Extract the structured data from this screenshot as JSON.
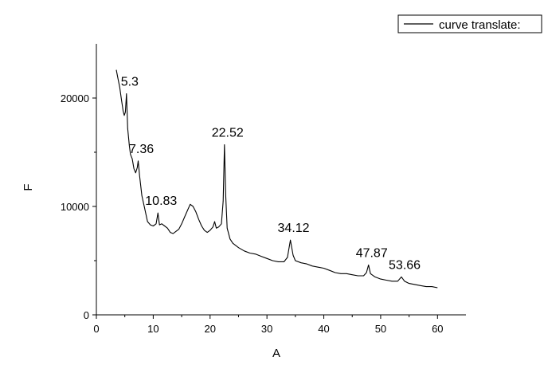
{
  "chart_data": {
    "type": "line",
    "title": "",
    "xlabel": "A",
    "ylabel": "F",
    "xlim": [
      0,
      65
    ],
    "ylim": [
      0,
      25000
    ],
    "xticks": [
      0,
      10,
      20,
      30,
      40,
      50,
      60
    ],
    "xtick_labels": [
      "0",
      "10",
      "20",
      "30",
      "40",
      "50",
      "60"
    ],
    "yticks": [
      0,
      10000,
      20000
    ],
    "ytick_labels": [
      "0",
      "10000",
      "20000"
    ],
    "grid": false,
    "legend": {
      "position": "top-right",
      "entries": [
        "curve translate:"
      ]
    },
    "series": [
      {
        "name": "curve translate:",
        "color": "#000000",
        "points": [
          [
            3.5,
            22600
          ],
          [
            3.8,
            21800
          ],
          [
            4.1,
            21000
          ],
          [
            4.4,
            19900
          ],
          [
            4.7,
            18800
          ],
          [
            4.9,
            18400
          ],
          [
            5.1,
            18700
          ],
          [
            5.3,
            20400
          ],
          [
            5.5,
            17200
          ],
          [
            5.8,
            15600
          ],
          [
            6.0,
            14800
          ],
          [
            6.3,
            14400
          ],
          [
            6.6,
            13500
          ],
          [
            6.9,
            13100
          ],
          [
            7.2,
            13600
          ],
          [
            7.36,
            14200
          ],
          [
            7.6,
            12800
          ],
          [
            8.0,
            11000
          ],
          [
            8.5,
            9800
          ],
          [
            9.0,
            8600
          ],
          [
            9.5,
            8300
          ],
          [
            10.0,
            8200
          ],
          [
            10.5,
            8400
          ],
          [
            10.83,
            9400
          ],
          [
            11.1,
            8300
          ],
          [
            11.5,
            8400
          ],
          [
            12.0,
            8200
          ],
          [
            12.5,
            8000
          ],
          [
            13.0,
            7600
          ],
          [
            13.5,
            7500
          ],
          [
            14.0,
            7700
          ],
          [
            14.5,
            7900
          ],
          [
            15.0,
            8400
          ],
          [
            15.5,
            9000
          ],
          [
            16.0,
            9600
          ],
          [
            16.5,
            10200
          ],
          [
            17.0,
            10000
          ],
          [
            17.5,
            9500
          ],
          [
            18.0,
            8800
          ],
          [
            18.5,
            8200
          ],
          [
            19.0,
            7800
          ],
          [
            19.5,
            7600
          ],
          [
            20.0,
            7800
          ],
          [
            20.5,
            8100
          ],
          [
            20.8,
            8600
          ],
          [
            21.1,
            8000
          ],
          [
            21.5,
            8100
          ],
          [
            22.0,
            8400
          ],
          [
            22.3,
            10500
          ],
          [
            22.52,
            15700
          ],
          [
            22.75,
            11000
          ],
          [
            23.0,
            8000
          ],
          [
            23.5,
            7000
          ],
          [
            24.0,
            6600
          ],
          [
            25.0,
            6200
          ],
          [
            26.0,
            5900
          ],
          [
            27.0,
            5700
          ],
          [
            28.0,
            5600
          ],
          [
            29.0,
            5400
          ],
          [
            30.0,
            5200
          ],
          [
            31.0,
            5000
          ],
          [
            32.0,
            4900
          ],
          [
            33.0,
            4900
          ],
          [
            33.6,
            5300
          ],
          [
            34.12,
            6900
          ],
          [
            34.6,
            5500
          ],
          [
            35.0,
            5000
          ],
          [
            36.0,
            4800
          ],
          [
            37.0,
            4700
          ],
          [
            38.0,
            4500
          ],
          [
            39.0,
            4400
          ],
          [
            40.0,
            4300
          ],
          [
            41.0,
            4100
          ],
          [
            42.0,
            3900
          ],
          [
            43.0,
            3800
          ],
          [
            44.0,
            3800
          ],
          [
            45.0,
            3700
          ],
          [
            46.0,
            3600
          ],
          [
            47.0,
            3600
          ],
          [
            47.5,
            3900
          ],
          [
            47.87,
            4600
          ],
          [
            48.2,
            3800
          ],
          [
            49.0,
            3500
          ],
          [
            50.0,
            3300
          ],
          [
            51.0,
            3200
          ],
          [
            52.0,
            3100
          ],
          [
            53.0,
            3100
          ],
          [
            53.66,
            3500
          ],
          [
            54.2,
            3100
          ],
          [
            55.0,
            2900
          ],
          [
            56.0,
            2800
          ],
          [
            57.0,
            2700
          ],
          [
            58.0,
            2600
          ],
          [
            59.0,
            2600
          ],
          [
            60.0,
            2500
          ]
        ]
      }
    ],
    "annotations": [
      {
        "text": "5.3",
        "x": 5.3,
        "y": 20400
      },
      {
        "text": "7.36",
        "x": 7.36,
        "y": 14200
      },
      {
        "text": "10.83",
        "x": 10.83,
        "y": 9400
      },
      {
        "text": "22.52",
        "x": 22.52,
        "y": 15700
      },
      {
        "text": "34.12",
        "x": 34.12,
        "y": 6900
      },
      {
        "text": "47.87",
        "x": 47.87,
        "y": 4600
      },
      {
        "text": "53.66",
        "x": 53.66,
        "y": 3500
      }
    ]
  }
}
